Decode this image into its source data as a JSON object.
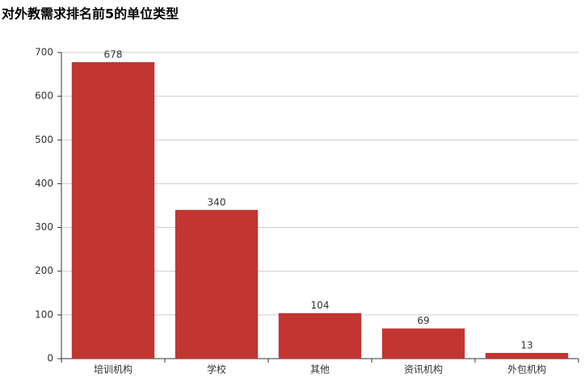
{
  "chart_data": {
    "type": "bar",
    "title": "对外教需求排名前5的单位类型",
    "categories": [
      "培训机构",
      "学校",
      "其他",
      "资讯机构",
      "外包机构"
    ],
    "values": [
      678,
      340,
      104,
      69,
      13
    ],
    "color": "#c23531",
    "ylim": [
      0,
      700
    ],
    "yticks": [
      0,
      100,
      200,
      300,
      400,
      500,
      600,
      700
    ],
    "grid": true
  }
}
